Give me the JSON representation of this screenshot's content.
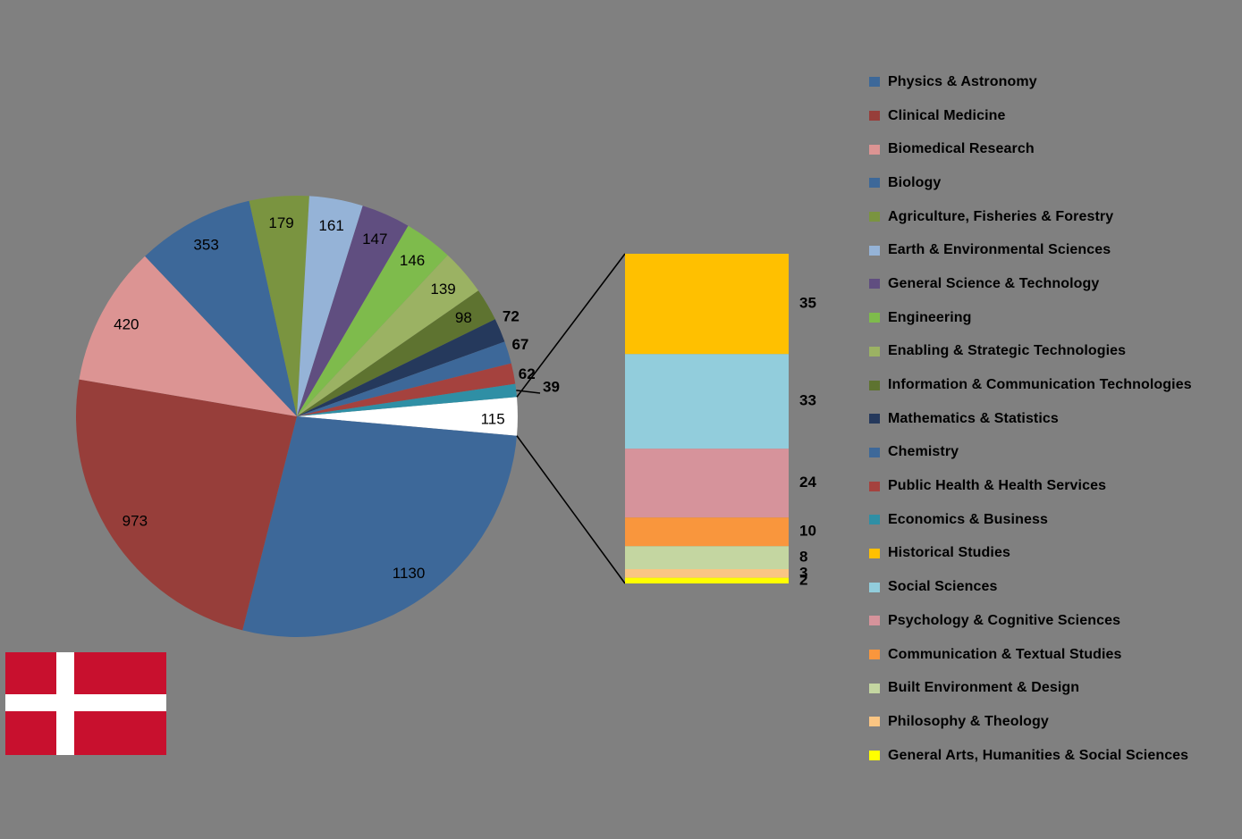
{
  "page": {
    "background_color": "#808080"
  },
  "chart_data": {
    "type": "pie-of-pie",
    "title": "",
    "legend_position": "right",
    "pie": {
      "other_slice": {
        "value": 115,
        "color": "#FFFFFF"
      },
      "slices": [
        {
          "label": "Physics & Astronomy",
          "value": 1130,
          "color": "#3D6899"
        },
        {
          "label": "Clinical Medicine",
          "value": 973,
          "color": "#973E3A"
        },
        {
          "label": "Biomedical Research",
          "value": 420,
          "color": "#DC9493"
        },
        {
          "label": "Biology",
          "value": 353,
          "color": "#3D6899"
        },
        {
          "label": "Agriculture, Fisheries & Forestry",
          "value": 179,
          "color": "#7A9440"
        },
        {
          "label": "Earth & Environmental Sciences",
          "value": 161,
          "color": "#95B3D7"
        },
        {
          "label": "General Science & Technology",
          "value": 147,
          "color": "#604E80"
        },
        {
          "label": "Engineering",
          "value": 146,
          "color": "#7EBB4C"
        },
        {
          "label": "Enabling & Strategic Technologies",
          "value": 139,
          "color": "#9BB263"
        },
        {
          "label": "Information & Communication Technologies",
          "value": 98,
          "color": "#5E7330"
        },
        {
          "label": "Mathematics & Statistics",
          "value": 72,
          "color": "#25395C"
        },
        {
          "label": "Chemistry",
          "value": 67,
          "color": "#3D6899"
        },
        {
          "label": "Public Health & Health Services",
          "value": 62,
          "color": "#A5423E"
        },
        {
          "label": "Economics & Business",
          "value": 39,
          "color": "#2F8FA5"
        }
      ]
    },
    "bar": {
      "segments": [
        {
          "label": "Historical Studies",
          "value": 35,
          "color": "#FFC000"
        },
        {
          "label": "Social Sciences",
          "value": 33,
          "color": "#92CDDC"
        },
        {
          "label": "Psychology & Cognitive Sciences",
          "value": 24,
          "color": "#D6939B"
        },
        {
          "label": "Communication & Textual Studies",
          "value": 10,
          "color": "#F9963D"
        },
        {
          "label": "Built Environment & Design",
          "value": 8,
          "color": "#C4D6A1"
        },
        {
          "label": "Philosophy & Theology",
          "value": 3,
          "color": "#FAC583"
        },
        {
          "label": "General Arts, Humanities & Social Sciences",
          "value": 2,
          "color": "#FFFF00"
        }
      ]
    },
    "connector_color": "#000000",
    "label_color": "#000000"
  },
  "flag": {
    "country": "Denmark",
    "field_color": "#C8102E",
    "cross_color": "#FFFFFF"
  }
}
